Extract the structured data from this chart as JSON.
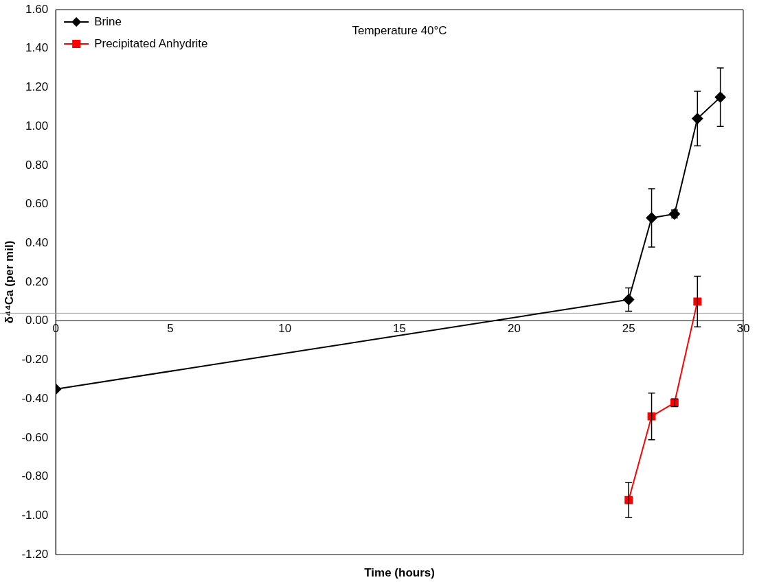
{
  "chart_data": {
    "type": "line",
    "annotations": [
      "Temperature 40°C"
    ],
    "xlabel": "Time (hours)",
    "ylabel": "δ⁴⁴Ca (per mil)",
    "xlim": [
      0,
      30
    ],
    "xticks": [
      0,
      5,
      10,
      15,
      20,
      25,
      30
    ],
    "ylim": [
      -1.2,
      1.6
    ],
    "yticks": [
      {
        "value": -1.2,
        "label": "-1.20"
      },
      {
        "value": -1,
        "label": "-1.00"
      },
      {
        "value": -0.8,
        "label": "-0.80"
      },
      {
        "value": -0.6,
        "label": "-0.60"
      },
      {
        "value": -0.4,
        "label": "-0.40"
      },
      {
        "value": -0.2,
        "label": "-0.20"
      },
      {
        "value": 0,
        "label": "0.00"
      },
      {
        "value": 0.2,
        "label": "0.20"
      },
      {
        "value": 0.4,
        "label": "0.40"
      },
      {
        "value": 0.6,
        "label": "0.60"
      },
      {
        "value": 0.8,
        "label": "0.80"
      },
      {
        "value": 1,
        "label": "1.00"
      },
      {
        "value": 1.2,
        "label": "1.20"
      },
      {
        "value": 1.4,
        "label": "1.40"
      },
      {
        "value": 1.6,
        "label": "1.60"
      }
    ],
    "grid": false,
    "legend": "top left",
    "line_style": "solid",
    "ref_lines": [
      {
        "axis": "y",
        "value": 0.04,
        "color": "#a0a0a0"
      }
    ],
    "series": [
      {
        "name": "Brine",
        "color": "#000000",
        "marker": "diamond",
        "x": [
          0,
          25,
          26,
          27,
          28,
          29
        ],
        "values": [
          -0.35,
          0.11,
          0.53,
          0.55,
          1.04,
          1.15
        ],
        "errors": [
          null,
          0.06,
          0.15,
          0.02,
          0.14,
          0.15
        ]
      },
      {
        "name": "Precipitated Anhydrite",
        "color": "#ff0000",
        "marker": "square",
        "x": [
          25,
          26,
          27,
          28
        ],
        "values": [
          -0.92,
          -0.49,
          -0.42,
          0.1
        ],
        "errors": [
          0.09,
          0.12,
          0.02,
          0.13
        ]
      }
    ]
  }
}
